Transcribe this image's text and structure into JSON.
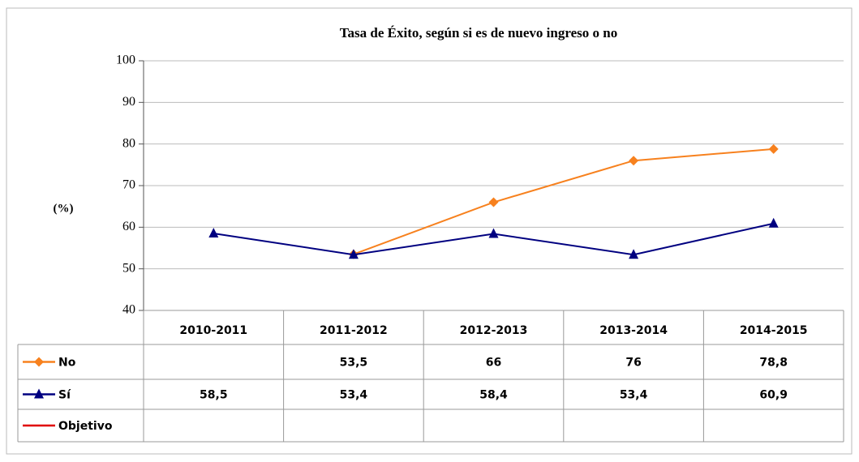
{
  "chart_data": {
    "type": "line",
    "title": "Tasa de Éxito, según si es de nuevo ingreso o no",
    "y_label": "(%)",
    "categories": [
      "2010-2011",
      "2011-2012",
      "2012-2013",
      "2013-2014",
      "2014-2015"
    ],
    "series": [
      {
        "name": "No",
        "color": "#f7811e",
        "marker": "diamond",
        "values": [
          null,
          53.5,
          66,
          76,
          78.8
        ],
        "value_labels": [
          null,
          "53,5",
          "66",
          "76",
          "78,8"
        ]
      },
      {
        "name": "Sí",
        "color": "#000080",
        "marker": "triangle",
        "values": [
          58.5,
          53.4,
          58.4,
          53.4,
          60.9
        ],
        "value_labels": [
          "58,5",
          "53,4",
          "58,4",
          "53,4",
          "60,9"
        ]
      },
      {
        "name": "Objetivo",
        "color": "#e00000",
        "marker": "none",
        "values": [
          null,
          null,
          null,
          null,
          null
        ],
        "value_labels": [
          null,
          null,
          null,
          null,
          null
        ]
      }
    ],
    "ylim": [
      40,
      100
    ],
    "yticks": [
      40,
      50,
      60,
      70,
      80,
      90,
      100
    ],
    "grid": true
  }
}
